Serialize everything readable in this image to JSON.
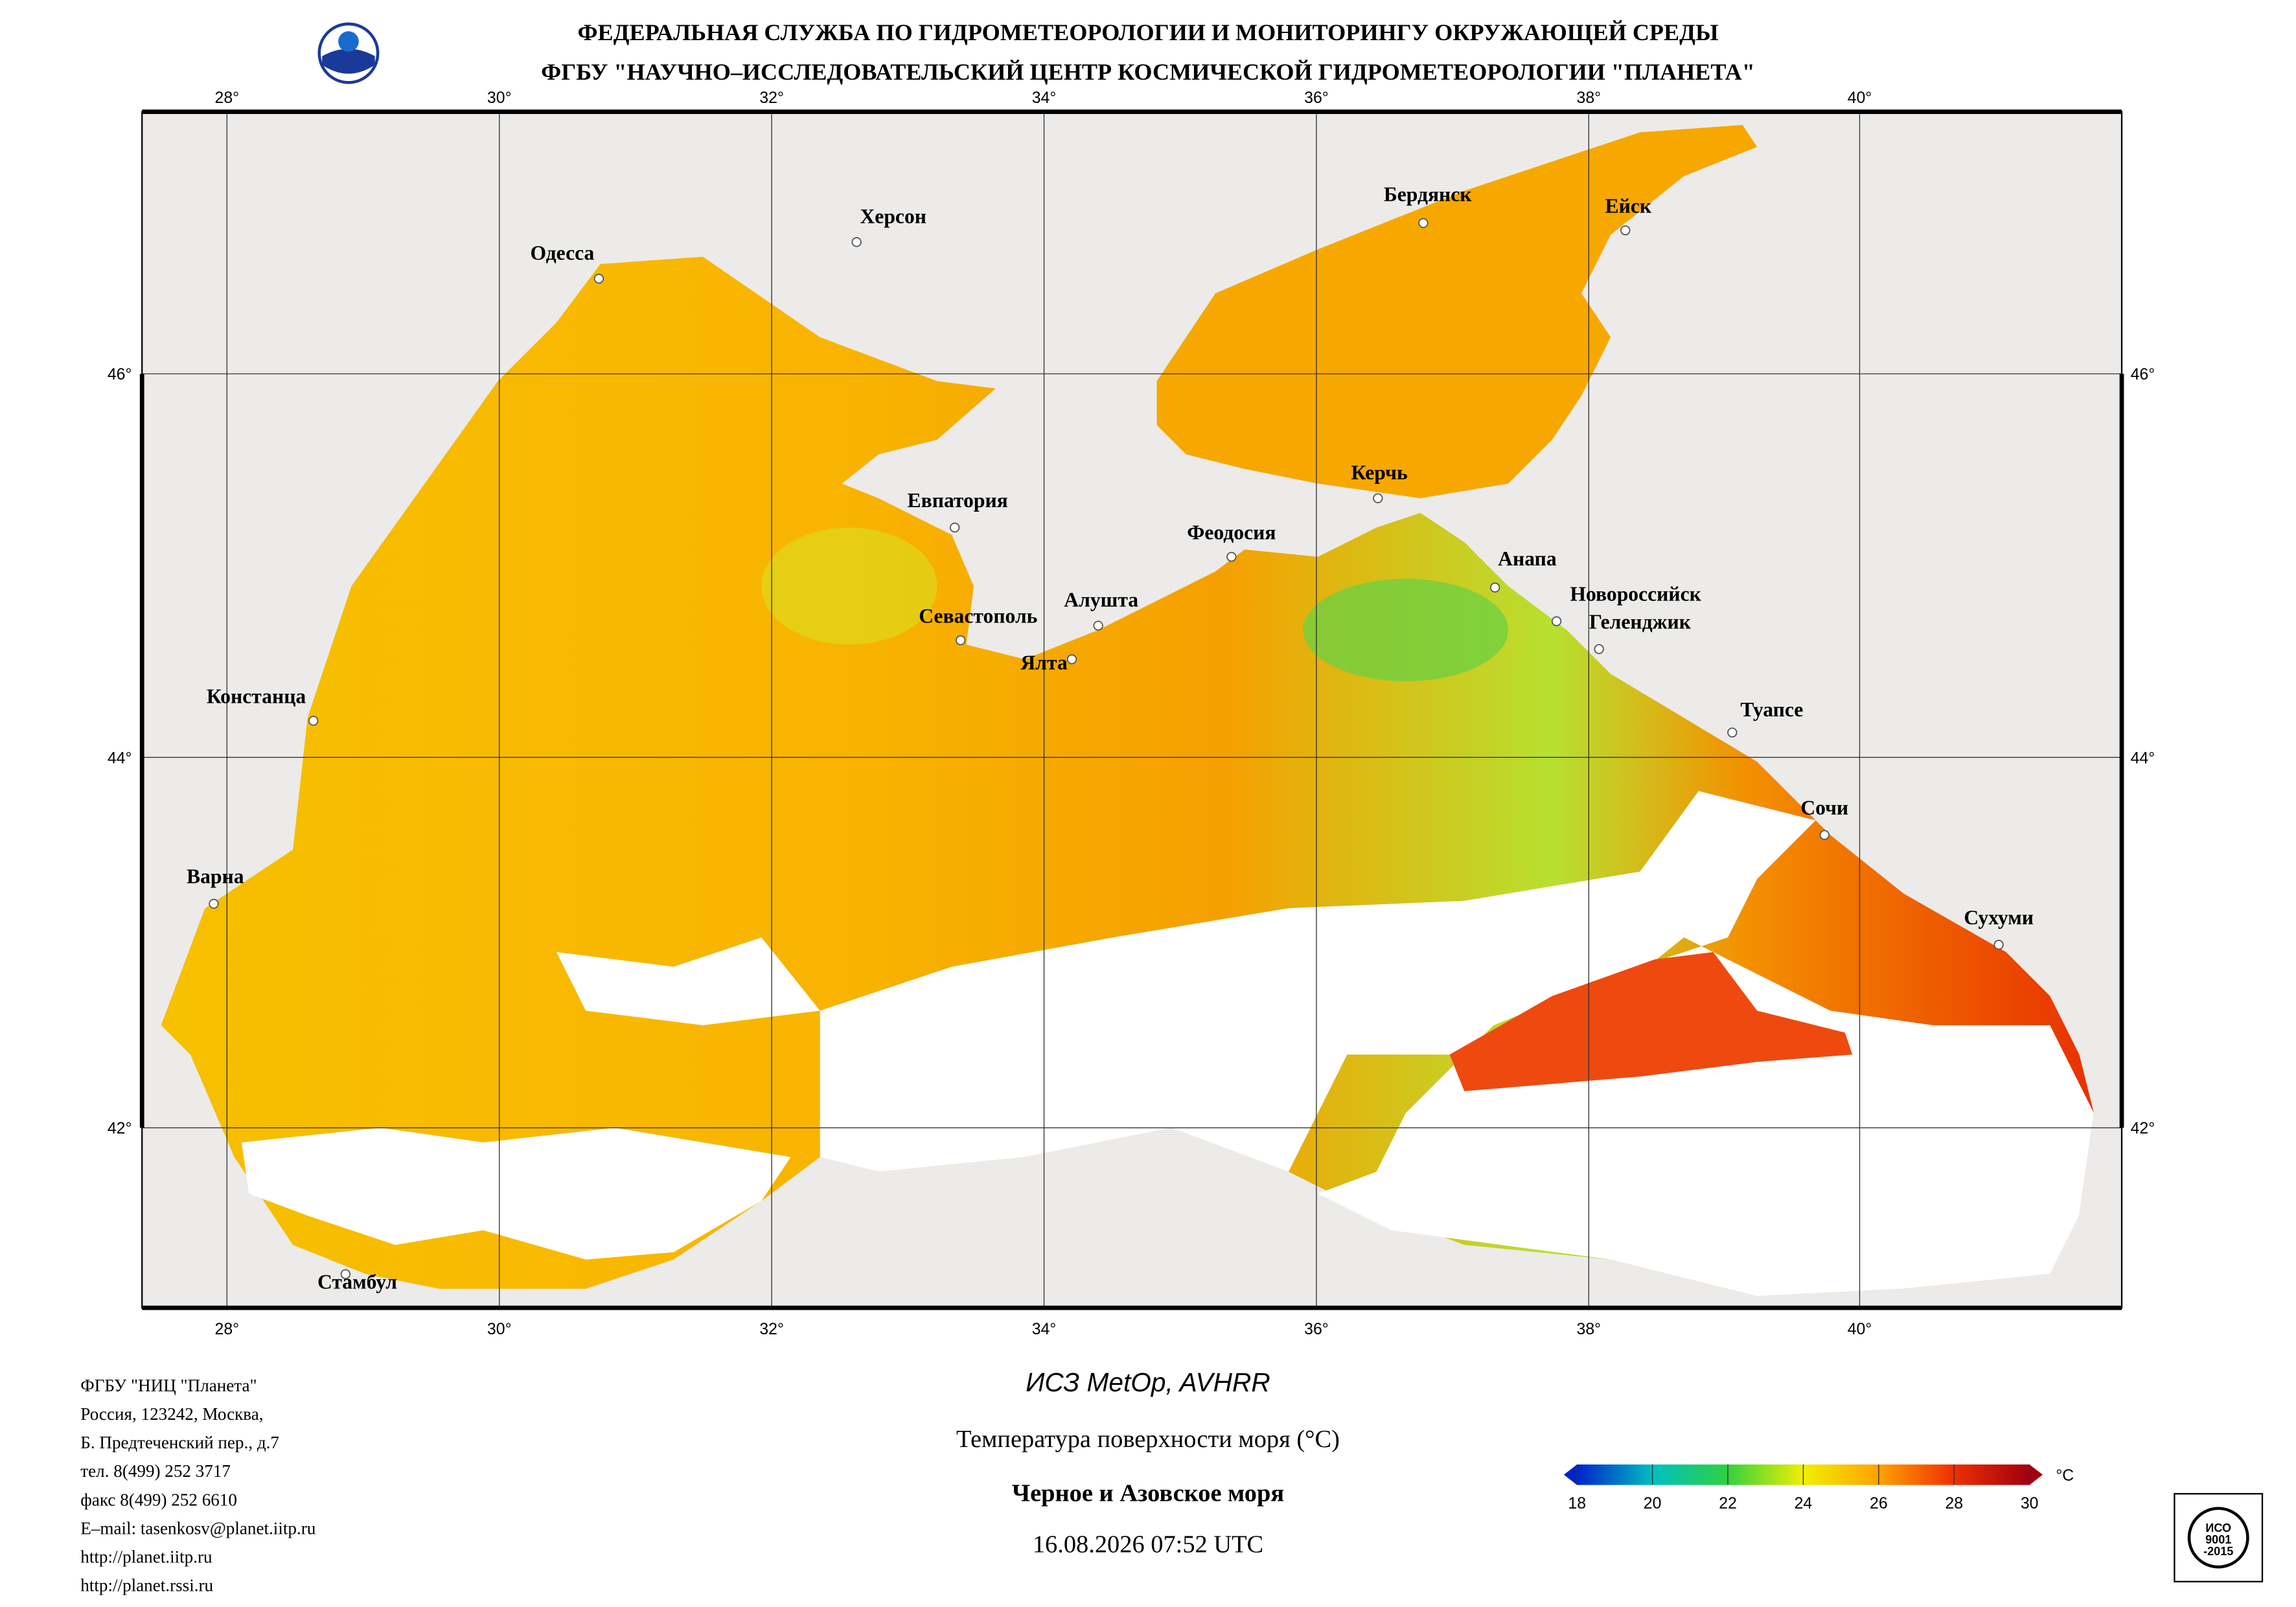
{
  "header": {
    "line1": "ФЕДЕРАЛЬНАЯ СЛУЖБА ПО ГИДРОМЕТЕОРОЛОГИИ И МОНИТОРИНГУ ОКРУЖАЮЩЕЙ СРЕДЫ",
    "line2": "ФГБУ \"НАУЧНО–ИССЛЕДОВАТЕЛЬСКИЙ ЦЕНТР КОСМИЧЕСКОЙ ГИДРОМЕТЕОРОЛОГИИ \"ПЛАНЕТА\""
  },
  "map": {
    "lon_labels": [
      "28°",
      "30°",
      "32°",
      "34°",
      "36°",
      "38°",
      "40°"
    ],
    "lat_labels": [
      "46°",
      "44°",
      "42°"
    ],
    "cities": [
      "Одесса",
      "Херсон",
      "Бердянск",
      "Ейск",
      "Евпатория",
      "Керчь",
      "Феодосия",
      "Анапа",
      "Новороссийск",
      "Геленджик",
      "Севастополь",
      "Алушта",
      "Ялта",
      "Туапсе",
      "Сочи",
      "Сухуми",
      "Констанца",
      "Варна",
      "Стамбул"
    ]
  },
  "footer": {
    "organization": [
      "ФГБУ \"НИЦ \"Планета\"",
      "Россия, 123242, Москва,",
      "Б. Предтеченский пер., д.7",
      "тел. 8(499) 252 3717",
      "факс 8(499) 252 6610",
      "E–mail: tasenkosv@planet.iitp.ru",
      "http://planet.iitp.ru",
      "http://planet.rssi.ru"
    ],
    "satellite": "ИСЗ MetOp, AVHRR",
    "parameter": "Температура поверхности моря (°C)",
    "region": "Черное и Азовское моря",
    "datetime": "16.08.2026 07:52 UTC"
  },
  "colorbar": {
    "unit": "°C",
    "ticks": [
      18,
      20,
      22,
      24,
      26,
      28,
      30
    ]
  },
  "certificate": {
    "lines": [
      "ИСО",
      "9001",
      "-2015"
    ]
  }
}
